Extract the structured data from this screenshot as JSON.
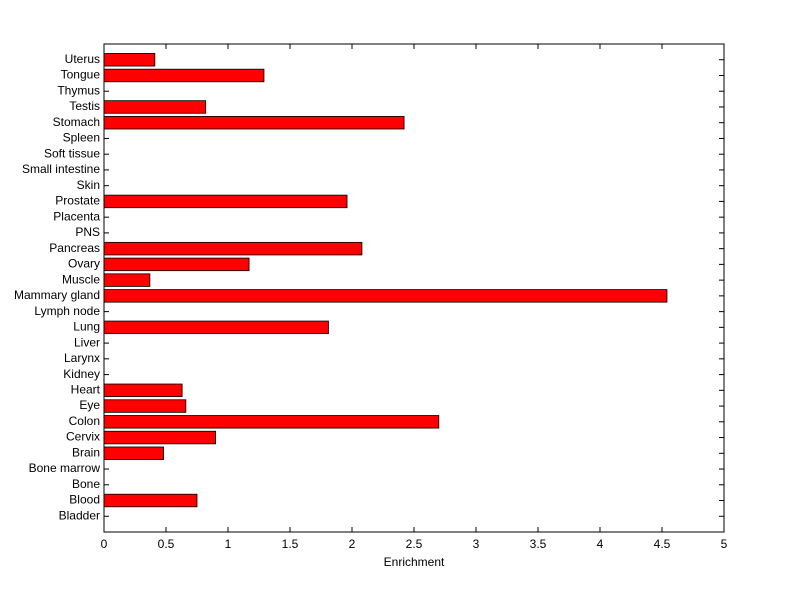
{
  "chart_data": {
    "type": "bar",
    "orientation": "horizontal",
    "x_label": "Enrichment",
    "categories": [
      "Bladder",
      "Blood",
      "Bone",
      "Bone marrow",
      "Brain",
      "Cervix",
      "Colon",
      "Eye",
      "Heart",
      "Kidney",
      "Larynx",
      "Liver",
      "Lung",
      "Lymph node",
      "Mammary gland",
      "Muscle",
      "Ovary",
      "Pancreas",
      "PNS",
      "Placenta",
      "Prostate",
      "Skin",
      "Small intestine",
      "Soft tissue",
      "Spleen",
      "Stomach",
      "Testis",
      "Thymus",
      "Tongue",
      "Uterus"
    ],
    "values": [
      0,
      0.75,
      0,
      0,
      0.48,
      0.9,
      2.7,
      0.66,
      0.63,
      0,
      0,
      0,
      1.81,
      0,
      4.54,
      0.37,
      1.17,
      2.08,
      0,
      0,
      1.96,
      0,
      0,
      0,
      0,
      2.42,
      0.82,
      0,
      1.29,
      0.41
    ],
    "color": "#ff0000",
    "xlim": [
      0,
      5
    ],
    "xticks": [
      0,
      0.5,
      1,
      1.5,
      2,
      2.5,
      3,
      3.5,
      4,
      4.5,
      5
    ],
    "grid": false
  }
}
